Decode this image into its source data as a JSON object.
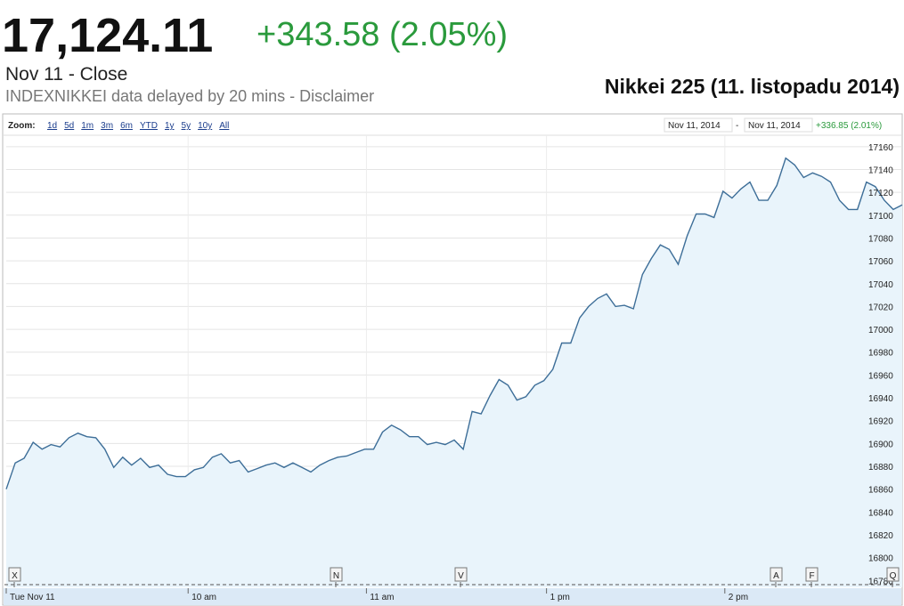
{
  "header": {
    "price": "17,124.11",
    "change": "+343.58 (2.05%)",
    "status": "Nov 11 - Close",
    "note": "INDEXNIKKEI data delayed by 20 mins - Disclaimer"
  },
  "toolbar": {
    "zoom_label": "Zoom:",
    "ranges": [
      "1d",
      "5d",
      "1m",
      "3m",
      "6m",
      "YTD",
      "1y",
      "5y",
      "10y",
      "All"
    ],
    "date_from": "Nov 11, 2014",
    "separator": "-",
    "date_to": "Nov 11, 2014",
    "change": "+336.85 (2.01%)"
  },
  "event_markers": [
    "X",
    "N",
    "V",
    "A",
    "F",
    "Q"
  ],
  "chart_data": {
    "type": "area",
    "title": "Nikkei 225 (11. listopadu 2014)",
    "color": "#3d6e98",
    "fill": "#e9f4fb",
    "grid": true,
    "values": [
      16860,
      16883,
      16887,
      16901,
      16895,
      16899,
      16897,
      16905,
      16909,
      16906,
      16905,
      16895,
      16879,
      16888,
      16881,
      16887,
      16879,
      16881,
      16873,
      16871,
      16871,
      16877,
      16879,
      16888,
      16891,
      16883,
      16885,
      16875,
      16878,
      16881,
      16883,
      16879,
      16883,
      16879,
      16875,
      16881,
      16885,
      16888,
      16889,
      16892,
      16895,
      16895,
      16910,
      16916,
      16912,
      16906,
      16906,
      16899,
      16901,
      16899,
      16903,
      16895,
      16928,
      16926,
      16942,
      16956,
      16951,
      16938,
      16941,
      16951,
      16955,
      16965,
      16988,
      16988,
      17010,
      17020,
      17027,
      17031,
      17020,
      17021,
      17018,
      17048,
      17062,
      17074,
      17070,
      17057,
      17082,
      17101,
      17101,
      17098,
      17121,
      17115,
      17123,
      17129,
      17113,
      17113,
      17126,
      17150,
      17144,
      17133,
      17137,
      17134,
      17129,
      17113,
      17105,
      17105,
      17129,
      17125,
      17113,
      17105,
      17109
    ],
    "ylim": [
      16774,
      17170
    ],
    "yticks": [
      16780,
      16800,
      16820,
      16840,
      16860,
      16880,
      16900,
      16920,
      16940,
      16960,
      16980,
      17000,
      17020,
      17040,
      17060,
      17080,
      17100,
      17120,
      17140,
      17160
    ],
    "xlim": [
      0,
      100
    ],
    "xticks": [
      {
        "value": 0,
        "label": "Tue Nov 11"
      },
      {
        "value": 20.3,
        "label": "10 am"
      },
      {
        "value": 40.2,
        "label": "11 am"
      },
      {
        "value": 60.3,
        "label": "1 pm"
      },
      {
        "value": 80.2,
        "label": "2 pm"
      }
    ]
  }
}
